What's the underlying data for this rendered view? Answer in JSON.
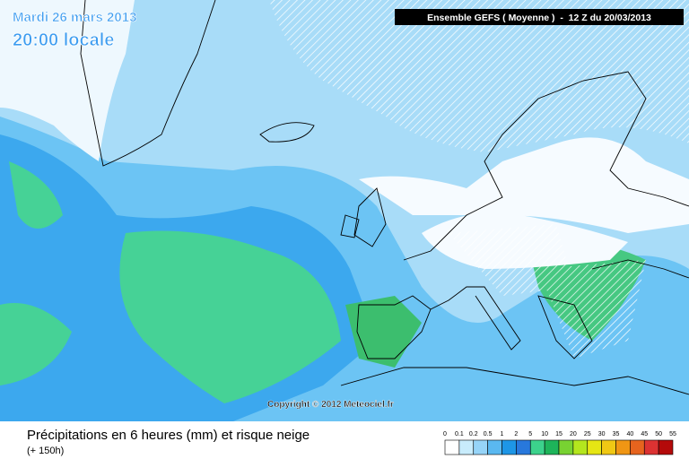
{
  "header": {
    "date": "Mardi 26 mars 2013",
    "time": "20:00 locale",
    "model": "Ensemble GEFS ( Moyenne )  -  12 Z du 20/03/2013"
  },
  "copyright": "Copyright © 2012 Meteociel.fr",
  "footer": {
    "title": "Précipitations en 6 heures (mm) et risque neige",
    "lead": "(+ 150h)"
  },
  "legend": {
    "labels": [
      "0",
      "0.1",
      "0.2",
      "0.5",
      "1",
      "2",
      "5",
      "10",
      "15",
      "20",
      "25",
      "30",
      "35",
      "40",
      "45",
      "50",
      "55"
    ],
    "colors": [
      "#ffffff",
      "#c8ecfc",
      "#96d4f8",
      "#5ab8f0",
      "#1e96e6",
      "#2878dc",
      "#3cd28c",
      "#1eb45a",
      "#78d232",
      "#b4e61e",
      "#e6e614",
      "#f0c814",
      "#f09614",
      "#e6641e",
      "#dc3232",
      "#b40a0a"
    ]
  }
}
